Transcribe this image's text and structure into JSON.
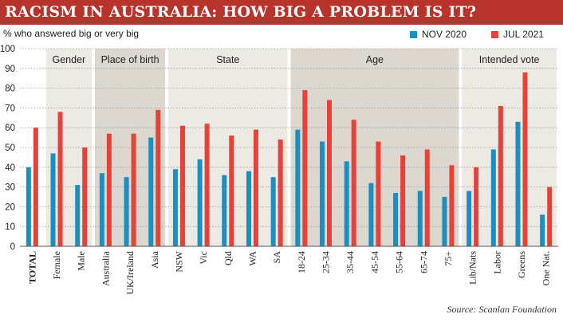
{
  "header": {
    "title": "RACISM IN AUSTRALIA: HOW BIG A PROBLEM IS IT?",
    "subtitle": "% who answered big or very big",
    "source": "Source: Scanlan Foundation"
  },
  "colors": {
    "title_bg": "#b8332c",
    "nov_2020": "#1a8fc0",
    "jul_2021": "#e8413a",
    "band_light": "#edeae3",
    "band_dark": "#dcd8cf",
    "grid": "#9a9a9a"
  },
  "chart_data": {
    "type": "bar",
    "ylabel": "% who answered big or very big",
    "ylim": [
      0,
      100
    ],
    "yticks": [
      0,
      10,
      20,
      30,
      40,
      50,
      60,
      70,
      80,
      90,
      100
    ],
    "grid": true,
    "legend_position": "top-right",
    "categories": [
      "TOTAL",
      "Female",
      "Male",
      "Australia",
      "UK/Ireland",
      "Asia",
      "NSW",
      "Vic",
      "Qld",
      "WA",
      "SA",
      "18-24",
      "25-34",
      "35-44",
      "45-54",
      "55-64",
      "65-74",
      "75+",
      "Lib/Nats",
      "Labor",
      "Greens",
      "One Nat."
    ],
    "series": [
      {
        "name": "NOV 2020",
        "values": [
          40,
          47,
          31,
          37,
          35,
          55,
          39,
          44,
          36,
          38,
          35,
          59,
          53,
          43,
          32,
          27,
          28,
          25,
          28,
          49,
          63,
          16
        ]
      },
      {
        "name": "JUL 2021",
        "values": [
          60,
          68,
          50,
          57,
          57,
          69,
          61,
          62,
          56,
          59,
          54,
          79,
          74,
          64,
          53,
          46,
          49,
          41,
          40,
          71,
          88,
          30
        ]
      }
    ],
    "groups": [
      {
        "label": "Gender",
        "first": 1,
        "last": 2,
        "shade": "light"
      },
      {
        "label": "Place of birth",
        "first": 3,
        "last": 5,
        "shade": "dark"
      },
      {
        "label": "State",
        "first": 6,
        "last": 10,
        "shade": "light"
      },
      {
        "label": "Age",
        "first": 11,
        "last": 17,
        "shade": "dark"
      },
      {
        "label": "Intended vote",
        "first": 18,
        "last": 21,
        "shade": "light"
      }
    ]
  }
}
